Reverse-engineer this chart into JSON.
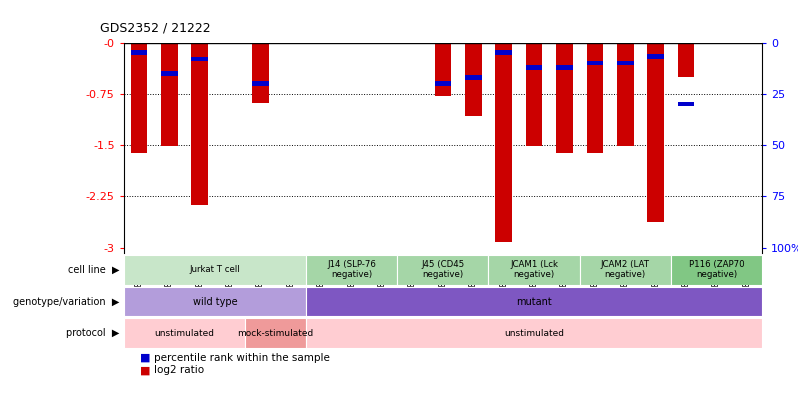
{
  "title": "GDS2352 / 21222",
  "samples": [
    "GSM89762",
    "GSM89765",
    "GSM89767",
    "GSM89759",
    "GSM89760",
    "GSM89764",
    "GSM89753",
    "GSM89755",
    "GSM89771",
    "GSM89756",
    "GSM89757",
    "GSM89758",
    "GSM89761",
    "GSM89763",
    "GSM89773",
    "GSM89766",
    "GSM89768",
    "GSM89770",
    "GSM89754",
    "GSM89769",
    "GSM89772"
  ],
  "log2_ratio": [
    -1.62,
    -1.52,
    -2.38,
    0.0,
    -0.88,
    0.0,
    0.0,
    0.0,
    0.0,
    0.0,
    -0.78,
    -1.08,
    -2.92,
    -1.52,
    -1.62,
    -1.62,
    -1.52,
    -2.62,
    -0.5,
    0.0,
    0.0
  ],
  "percentile": [
    5,
    15,
    8,
    0,
    20,
    0,
    0,
    0,
    0,
    0,
    20,
    17,
    5,
    12,
    12,
    10,
    10,
    7,
    30,
    0,
    0
  ],
  "ymin": -3.0,
  "ymax": 0.0,
  "yticks_left": [
    0,
    -0.75,
    -1.5,
    -2.25,
    -3
  ],
  "ytick_labels_left": [
    "-0",
    "-0.75",
    "-1.5",
    "-2.25",
    "-3"
  ],
  "yticks_right_pct": [
    100,
    75,
    50,
    25,
    0
  ],
  "ytick_labels_right": [
    "100%",
    "75",
    "50",
    "25",
    "0"
  ],
  "bar_color": "#cc0000",
  "marker_color": "#0000cc",
  "bar_width": 0.55,
  "cell_line_groups": [
    {
      "label": "Jurkat T cell",
      "start": 0,
      "end": 5,
      "color": "#c8e6c9"
    },
    {
      "label": "J14 (SLP-76\nnegative)",
      "start": 6,
      "end": 8,
      "color": "#a5d6a7"
    },
    {
      "label": "J45 (CD45\nnegative)",
      "start": 9,
      "end": 11,
      "color": "#a5d6a7"
    },
    {
      "label": "JCAM1 (Lck\nnegative)",
      "start": 12,
      "end": 14,
      "color": "#a5d6a7"
    },
    {
      "label": "JCAM2 (LAT\nnegative)",
      "start": 15,
      "end": 17,
      "color": "#a5d6a7"
    },
    {
      "label": "P116 (ZAP70\nnegative)",
      "start": 18,
      "end": 20,
      "color": "#81c784"
    }
  ],
  "genotype_groups": [
    {
      "label": "wild type",
      "start": 0,
      "end": 5,
      "color": "#b39ddb"
    },
    {
      "label": "mutant",
      "start": 6,
      "end": 20,
      "color": "#7e57c2"
    }
  ],
  "protocol_groups": [
    {
      "label": "unstimulated",
      "start": 0,
      "end": 3,
      "color": "#ffcdd2"
    },
    {
      "label": "mock-stimulated",
      "start": 4,
      "end": 5,
      "color": "#ef9a9a"
    },
    {
      "label": "unstimulated",
      "start": 6,
      "end": 20,
      "color": "#ffcdd2"
    }
  ],
  "row_labels": [
    "cell line",
    "genotype/variation",
    "protocol"
  ],
  "legend": [
    {
      "label": "log2 ratio",
      "color": "#cc0000"
    },
    {
      "label": "percentile rank within the sample",
      "color": "#0000cc"
    }
  ]
}
